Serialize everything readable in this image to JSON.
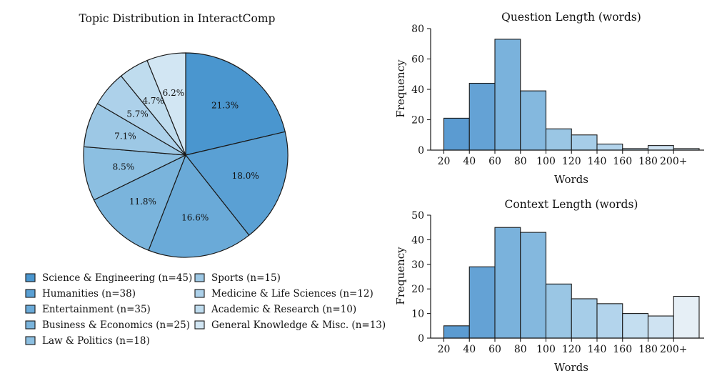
{
  "chart_data": [
    {
      "type": "pie",
      "title": "Topic Distribution in InteractComp",
      "slices": [
        {
          "label": "Science & Engineering (n=45)",
          "value": 45,
          "pct": "21.3%",
          "color": "#4a96cf"
        },
        {
          "label": "Humanities (n=38)",
          "value": 38,
          "pct": "18.0%",
          "color": "#5aa0d4"
        },
        {
          "label": "Entertainment (n=35)",
          "value": 35,
          "pct": "16.6%",
          "color": "#6aaad8"
        },
        {
          "label": "Business & Economics (n=25)",
          "value": 25,
          "pct": "11.8%",
          "color": "#7ab4dc"
        },
        {
          "label": "Law & Politics (n=18)",
          "value": 18,
          "pct": "8.5%",
          "color": "#8cbfe1"
        },
        {
          "label": "Sports (n=15)",
          "value": 15,
          "pct": "7.1%",
          "color": "#9dc8e5"
        },
        {
          "label": "Medicine & Life Sciences (n=12)",
          "value": 12,
          "pct": "5.7%",
          "color": "#add1ea"
        },
        {
          "label": "Academic & Research (n=10)",
          "value": 10,
          "pct": "4.7%",
          "color": "#bfdcee"
        },
        {
          "label": "General Knowledge & Misc. (n=13)",
          "value": 13,
          "pct": "6.2%",
          "color": "#d2e6f3"
        }
      ],
      "legend_location": "bottom",
      "start_angle": "12 o'clock",
      "order": "clockwise"
    },
    {
      "type": "bar",
      "title": "Question Length (words)",
      "xlabel": "Words",
      "ylabel": "Frequency",
      "bin_edges": [
        20,
        40,
        60,
        80,
        100,
        120,
        140,
        160,
        180,
        200,
        220
      ],
      "values": [
        21,
        44,
        73,
        39,
        14,
        10,
        4,
        1,
        3,
        1
      ],
      "xticks": [
        "20",
        "40",
        "60",
        "80",
        "100",
        "120",
        "140",
        "160",
        "180",
        "200+"
      ],
      "yticks": [
        0,
        20,
        40,
        60,
        80
      ],
      "ylim": [
        0,
        80
      ],
      "colors": [
        "#5b9bd1",
        "#64a2d5",
        "#7ab2dc",
        "#84b8de",
        "#9ac6e4",
        "#a6cde8",
        "#b3d4ec",
        "#c4def0",
        "#cfe3f2",
        "#dbebf6"
      ]
    },
    {
      "type": "bar",
      "title": "Context Length (words)",
      "xlabel": "Words",
      "ylabel": "Frequency",
      "bin_edges": [
        20,
        40,
        60,
        80,
        100,
        120,
        140,
        160,
        180,
        200,
        220
      ],
      "values": [
        5,
        29,
        45,
        43,
        22,
        16,
        14,
        10,
        9,
        17
      ],
      "xticks": [
        "20",
        "40",
        "60",
        "80",
        "100",
        "120",
        "140",
        "160",
        "180",
        "200+"
      ],
      "yticks": [
        0,
        10,
        20,
        30,
        40,
        50
      ],
      "ylim": [
        0,
        50
      ],
      "colors": [
        "#5b9bd1",
        "#64a2d5",
        "#7ab2dc",
        "#84b8de",
        "#9ac6e4",
        "#a6cde8",
        "#b3d4ec",
        "#c4def0",
        "#cfe3f2",
        "#e6eff6"
      ]
    }
  ]
}
